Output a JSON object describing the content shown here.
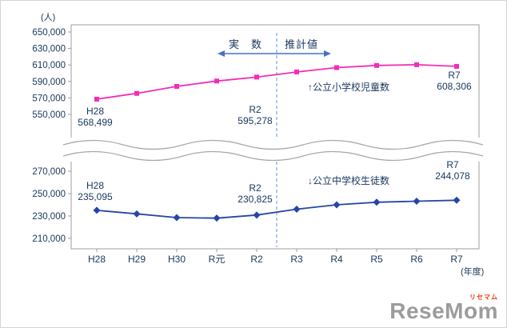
{
  "unit_label": "(人)",
  "x_unit_label": "(年度)",
  "legend": {
    "actual": "実　数",
    "estimate": "推計値"
  },
  "divider": {
    "between": [
      "R2",
      "R3"
    ]
  },
  "chart_data": [
    {
      "type": "line",
      "name": "公立小学校児童数",
      "series_label": "↑公立小学校児童数",
      "categories": [
        "H28",
        "H29",
        "H30",
        "R元",
        "R2",
        "R3",
        "R4",
        "R5",
        "R6",
        "R7"
      ],
      "values": [
        568499,
        575500,
        584000,
        590500,
        595278,
        601500,
        606800,
        609400,
        610300,
        608306
      ],
      "color": "#f22db8",
      "marker": "square",
      "ylim": [
        550000,
        650000
      ],
      "yticks": [
        550000,
        570000,
        590000,
        610000,
        630000,
        650000
      ],
      "annotations": [
        {
          "label": "H28",
          "value": "568,499"
        },
        {
          "label": "R2",
          "value": "595,278"
        },
        {
          "label": "R7",
          "value": "608,306"
        }
      ]
    },
    {
      "type": "line",
      "name": "公立中学校生徒数",
      "series_label": "↓公立中学校生徒数",
      "categories": [
        "H28",
        "H29",
        "H30",
        "R元",
        "R2",
        "R3",
        "R4",
        "R5",
        "R6",
        "R7"
      ],
      "values": [
        235095,
        231900,
        228600,
        228100,
        230825,
        236100,
        240000,
        242300,
        243200,
        244078
      ],
      "color": "#2446a6",
      "marker": "diamond",
      "ylim": [
        210000,
        270000
      ],
      "yticks": [
        210000,
        230000,
        250000,
        270000
      ],
      "annotations": [
        {
          "label": "H28",
          "value": "235,095"
        },
        {
          "label": "R2",
          "value": "230,825"
        },
        {
          "label": "R7",
          "value": "244,078"
        }
      ]
    }
  ],
  "watermark": {
    "main": "ReseMom",
    "sub": "リセマム"
  }
}
